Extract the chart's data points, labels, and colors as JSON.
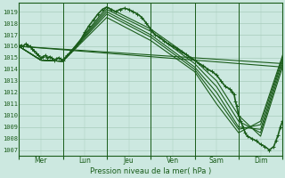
{
  "bg_color": "#cce8e0",
  "grid_color": "#a8ccbc",
  "line_color": "#1a5c1a",
  "ylabel_ticks": [
    1007,
    1008,
    1009,
    1010,
    1011,
    1012,
    1013,
    1014,
    1015,
    1016,
    1017,
    1018,
    1019
  ],
  "ylim": [
    1006.5,
    1019.8
  ],
  "xlabel": "Pression niveau de la mer( hPa )",
  "day_labels": [
    "Mer",
    "Lun",
    "Jeu",
    "Ven",
    "Sam",
    "Dim"
  ],
  "day_sep_positions": [
    0.0,
    1.0,
    2.0,
    3.0,
    4.0,
    5.0,
    6.0
  ],
  "xlim": [
    0.0,
    6.0
  ],
  "series": [
    {
      "x": [
        0.0,
        0.05,
        0.1,
        0.15,
        0.2,
        0.25,
        0.3,
        0.35,
        0.4,
        0.45,
        0.5,
        0.55,
        0.6,
        0.65,
        0.7,
        0.75,
        0.8,
        0.85,
        0.9,
        0.95,
        1.0,
        1.1,
        1.2,
        1.3,
        1.4,
        1.5,
        1.6,
        1.7,
        1.8,
        1.9,
        2.0,
        2.1,
        2.2,
        2.3,
        2.4,
        2.5,
        2.6,
        2.7,
        2.8,
        2.9,
        3.0,
        3.1,
        3.2,
        3.3,
        3.4,
        3.5,
        3.6,
        3.7,
        3.8,
        3.9,
        4.0,
        4.1,
        4.2,
        4.3,
        4.4,
        4.5,
        4.6,
        4.7,
        4.8,
        4.85,
        4.9,
        4.93,
        4.96,
        5.0,
        5.05,
        5.1,
        5.15,
        5.2,
        5.3,
        5.4,
        5.5,
        5.6,
        5.7,
        5.8,
        5.85,
        5.9,
        5.95,
        6.0
      ],
      "y": [
        1016.0,
        1016.1,
        1016.0,
        1016.2,
        1016.1,
        1016.0,
        1015.8,
        1015.6,
        1015.4,
        1015.2,
        1015.0,
        1015.1,
        1015.2,
        1015.0,
        1015.1,
        1015.0,
        1014.8,
        1014.9,
        1015.0,
        1014.9,
        1014.8,
        1015.2,
        1015.6,
        1016.0,
        1016.5,
        1017.2,
        1017.8,
        1018.3,
        1018.8,
        1019.2,
        1019.4,
        1019.2,
        1019.0,
        1019.2,
        1019.3,
        1019.2,
        1019.0,
        1018.8,
        1018.5,
        1018.0,
        1017.5,
        1017.0,
        1016.8,
        1016.5,
        1016.2,
        1016.0,
        1015.8,
        1015.5,
        1015.3,
        1015.0,
        1014.8,
        1014.5,
        1014.3,
        1014.0,
        1013.8,
        1013.5,
        1013.0,
        1012.5,
        1012.3,
        1012.1,
        1011.8,
        1011.2,
        1010.8,
        1010.0,
        1009.5,
        1009.0,
        1008.5,
        1008.2,
        1008.0,
        1007.8,
        1007.5,
        1007.3,
        1007.0,
        1007.3,
        1007.8,
        1008.3,
        1009.0,
        1009.5
      ],
      "marker": true,
      "lw": 1.2
    },
    {
      "x": [
        0.0,
        0.5,
        1.0,
        2.0,
        3.0,
        4.0,
        4.5,
        5.0,
        5.5,
        6.0
      ],
      "y": [
        1016.0,
        1014.8,
        1014.7,
        1019.4,
        1017.5,
        1014.8,
        1013.0,
        1010.0,
        1008.2,
        1014.2
      ],
      "marker": false,
      "lw": 0.8
    },
    {
      "x": [
        0.0,
        0.5,
        1.0,
        2.0,
        3.0,
        4.0,
        4.5,
        5.0,
        5.5,
        6.0
      ],
      "y": [
        1016.0,
        1014.8,
        1014.7,
        1019.2,
        1017.3,
        1014.5,
        1012.5,
        1009.5,
        1008.5,
        1014.5
      ],
      "marker": false,
      "lw": 0.8
    },
    {
      "x": [
        0.0,
        0.5,
        1.0,
        2.0,
        3.0,
        4.0,
        4.5,
        5.0,
        5.5,
        6.0
      ],
      "y": [
        1016.0,
        1014.8,
        1014.7,
        1019.0,
        1017.0,
        1014.2,
        1012.0,
        1009.0,
        1008.8,
        1014.8
      ],
      "marker": false,
      "lw": 0.8
    },
    {
      "x": [
        0.0,
        0.5,
        1.0,
        2.0,
        3.0,
        4.0,
        4.5,
        5.0,
        5.5,
        6.0
      ],
      "y": [
        1016.0,
        1014.8,
        1014.7,
        1018.8,
        1016.8,
        1014.0,
        1011.5,
        1008.8,
        1009.2,
        1015.0
      ],
      "marker": false,
      "lw": 0.8
    },
    {
      "x": [
        0.0,
        0.5,
        1.0,
        2.0,
        3.0,
        4.0,
        4.5,
        5.0,
        5.5,
        6.0
      ],
      "y": [
        1016.0,
        1014.8,
        1014.7,
        1018.5,
        1016.5,
        1013.8,
        1011.0,
        1008.5,
        1009.5,
        1015.2
      ],
      "marker": false,
      "lw": 0.8
    },
    {
      "x": [
        0.0,
        6.0
      ],
      "y": [
        1016.0,
        1014.2
      ],
      "marker": false,
      "lw": 0.8
    },
    {
      "x": [
        0.0,
        6.0
      ],
      "y": [
        1016.0,
        1014.5
      ],
      "marker": false,
      "lw": 0.8
    }
  ]
}
